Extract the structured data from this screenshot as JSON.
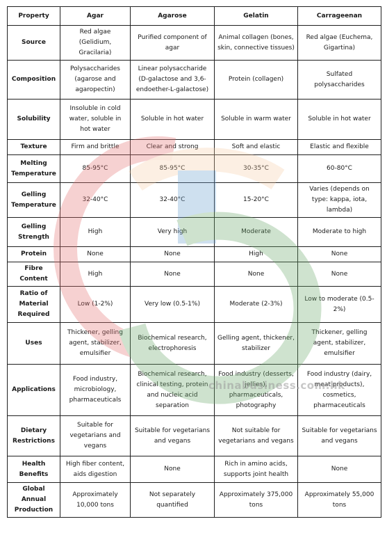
{
  "header": [
    "Property",
    "Agar",
    "Agarose",
    "Gelatin",
    "Carrageenan"
  ],
  "rows": [
    {
      "label": "Source",
      "cells": [
        "Red algae (Gelidium, Gracilaria)",
        "Purified component of agar",
        "Animal collagen (bones, skin, connective tissues)",
        "Red algae (Euchema, Gigartina)"
      ]
    },
    {
      "label": "Composition",
      "cells": [
        "Polysaccharides (agarose and agaropectin)",
        "Linear polysaccharide (D-galactose and 3,6-endoether-L-galactose)",
        "Protein (collagen)",
        "Sulfated polysaccharides"
      ]
    },
    {
      "label": "Solubility",
      "cells": [
        "Insoluble in cold water, soluble in hot water",
        "Soluble in hot water",
        "Soluble in warm water",
        "Soluble in hot water"
      ]
    },
    {
      "label": "Texture",
      "cells": [
        "Firm and brittle",
        "Clear and strong",
        "Soft and elastic",
        "Elastic and flexible"
      ]
    },
    {
      "label": "Melting Temperature",
      "cells": [
        "85-95°C",
        "85-95°C",
        "30-35°C",
        "60-80°C"
      ]
    },
    {
      "label": "Gelling Temperature",
      "cells": [
        "32-40°C",
        "32-40°C",
        "15-20°C",
        "Varies (depends on type: kappa, iota, lambda)"
      ]
    },
    {
      "label": "Gelling Strength",
      "cells": [
        "High",
        "Very high",
        "Moderate",
        "Moderate to high"
      ]
    },
    {
      "label": "Protein",
      "cells": [
        "None",
        "None",
        "High",
        "None"
      ]
    },
    {
      "label": "Fibre Content",
      "cells": [
        "High",
        "None",
        "None",
        "None"
      ]
    },
    {
      "label": "Ratio of Material Required",
      "cells": [
        "Low (1-2%)",
        "Very low (0.5-1%)",
        "Moderate (2-3%)",
        "Low to moderate (0.5-2%)"
      ]
    },
    {
      "label": "Uses",
      "cells": [
        "Thickener, gelling agent, stabilizer, emulsifier",
        "Biochemical research, electrophoresis",
        "Gelling agent, thickener, stabilizer",
        "Thickener, gelling agent, stabilizer, emulsifier"
      ]
    },
    {
      "label": "Applications",
      "cells": [
        "Food industry, microbiology, pharmaceuticals",
        "Biochemical research, clinical testing, protein and nucleic acid separation",
        "Food industry (desserts, jellies), pharmaceuticals, photography",
        "Food industry (dairy, meat products), cosmetics, pharmaceuticals"
      ]
    },
    {
      "label": "Dietary Restrictions",
      "cells": [
        "Suitable for vegetarians and vegans",
        "Suitable for vegetarians and vegans",
        "Not suitable for vegetarians and vegans",
        "Suitable for vegetarians and vegans"
      ]
    },
    {
      "label": "Health Benefits",
      "cells": [
        "High fiber content, aids digestion",
        "None",
        "Rich in amino acids, supports joint health",
        "None"
      ]
    },
    {
      "label": "Global Annual Production",
      "cells": [
        "Approximately 10,000 tons",
        "Not separately quantified",
        "Approximately 375,000 tons",
        "Approximately 55,000 tons"
      ]
    }
  ],
  "watermark": {
    "text": "chinabusiness.com.hk",
    "colors": {
      "red": "#e57373",
      "orange": "#f5c9a0",
      "blue": "#6aa0cf",
      "green": "#6aa86a"
    }
  }
}
